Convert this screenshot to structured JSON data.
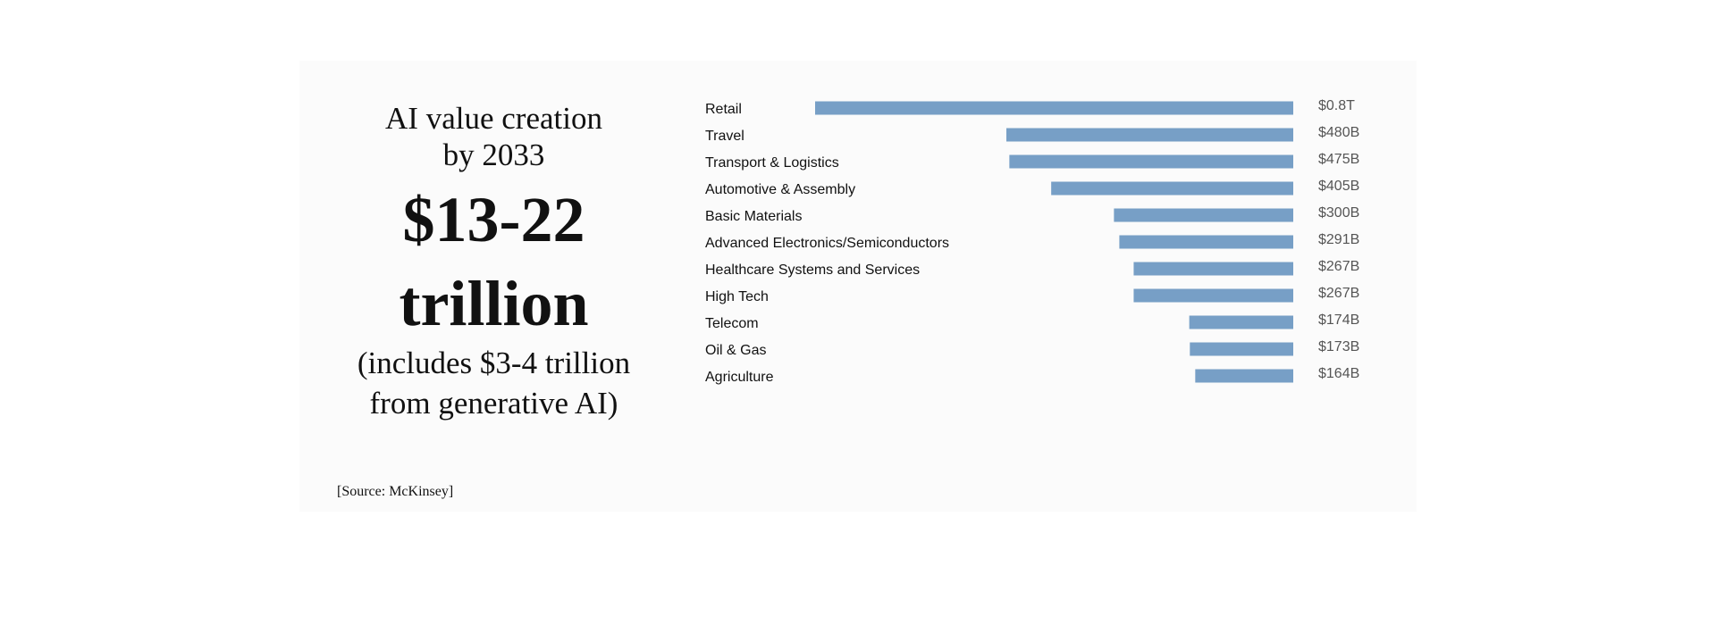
{
  "headline": {
    "line1": "AI value creation",
    "line2": "by 2033",
    "big1": "$13-22",
    "big2": "trillion",
    "note1": "(includes $3-4 trillion",
    "note2": "from generative AI)"
  },
  "source": "[Source: McKinsey]",
  "colors": {
    "bar": "#779fc6"
  },
  "chart_data": {
    "type": "bar",
    "orientation": "horizontal",
    "bar_alignment": "right",
    "categories": [
      "Retail",
      "Travel",
      "Transport & Logistics",
      "Automotive & Assembly",
      "Basic Materials",
      "Advanced Electronics/Semiconductors",
      "Healthcare Systems and Services",
      "High Tech",
      "Telecom",
      "Oil & Gas",
      "Agriculture"
    ],
    "values": [
      800,
      480,
      475,
      405,
      300,
      291,
      267,
      267,
      174,
      173,
      164
    ],
    "value_labels": [
      "$0.8T",
      "$480B",
      "$475B",
      "$405B",
      "$300B",
      "$291B",
      "$267B",
      "$267B",
      "$174B",
      "$173B",
      "$164B"
    ],
    "unit": "billion USD",
    "xlim": [
      0,
      800
    ],
    "grid": false,
    "legend": "none"
  }
}
